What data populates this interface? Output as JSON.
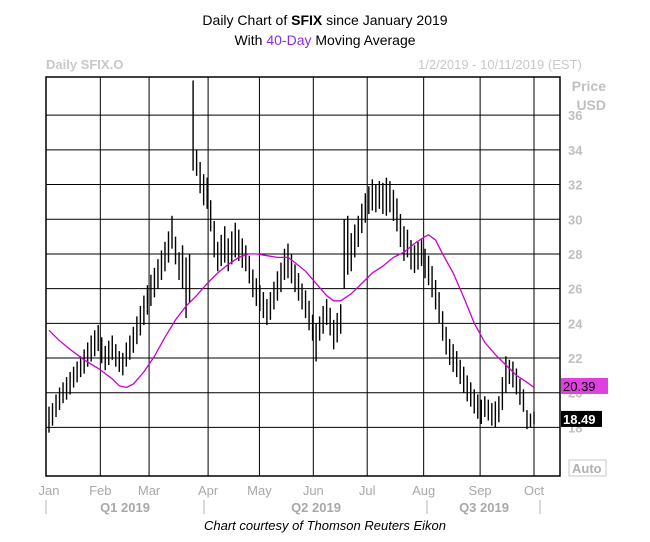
{
  "header": {
    "title_prefix": "Daily Chart of ",
    "ticker": "SFIX",
    "title_suffix": " since January 2019",
    "subtitle_prefix": "With ",
    "ma_label": "40-Day",
    "subtitle_suffix": " Moving Average",
    "series_label": "Daily SFIX.O",
    "date_range": "1/2/2019 - 10/11/2019 (EST)",
    "y_title_1": "Price",
    "y_title_2": "USD",
    "auto_label": "Auto"
  },
  "footer": {
    "credit": "Chart courtesy of Thomson Reuters Eikon"
  },
  "colors": {
    "ma_line": "#cc00cc",
    "bars": "#000000",
    "grid": "#000000",
    "last_price_box": "#000000"
  },
  "chart_data": {
    "type": "line",
    "title": "Daily Chart of SFIX since January 2019",
    "subtitle": "With 40-Day Moving Average",
    "xlabel": "",
    "ylabel": "Price USD",
    "ylim": [
      15.2,
      38.2
    ],
    "y_ticks": [
      18,
      20,
      22,
      24,
      26,
      28,
      30,
      32,
      34,
      36
    ],
    "x_month_labels": [
      "Jan",
      "Feb",
      "Mar",
      "Apr",
      "May",
      "Jun",
      "Jul",
      "Aug",
      "Sep",
      "Oct"
    ],
    "x_quarter_labels": [
      "Q1 2019",
      "Q2 2019",
      "Q3 2019"
    ],
    "grid": true,
    "last_values": {
      "ma": "20.39",
      "price": "18.49"
    },
    "series": [
      {
        "name": "SFIX.O daily",
        "kind": "ohlc-range",
        "points": [
          [
            0,
            17.7,
            19.2
          ],
          [
            1,
            18.1,
            19.4
          ],
          [
            2,
            18.6,
            19.9
          ],
          [
            3,
            19.0,
            20.3
          ],
          [
            4,
            19.4,
            20.6
          ],
          [
            5,
            19.6,
            20.9
          ],
          [
            6,
            19.9,
            21.2
          ],
          [
            7,
            20.3,
            21.5
          ],
          [
            8,
            20.6,
            21.8
          ],
          [
            9,
            20.9,
            22.1
          ],
          [
            10,
            21.1,
            22.5
          ],
          [
            11,
            21.5,
            22.9
          ],
          [
            12,
            21.8,
            23.3
          ],
          [
            13,
            22.1,
            23.6
          ],
          [
            14,
            22.4,
            23.9
          ],
          [
            15,
            21.7,
            23.2
          ],
          [
            16,
            21.3,
            22.7
          ],
          [
            17,
            21.6,
            23.0
          ],
          [
            18,
            21.9,
            23.3
          ],
          [
            19,
            21.5,
            22.8
          ],
          [
            20,
            21.2,
            22.4
          ],
          [
            21,
            21.0,
            22.3
          ],
          [
            22,
            21.5,
            22.9
          ],
          [
            23,
            21.9,
            23.3
          ],
          [
            24,
            22.3,
            23.8
          ],
          [
            25,
            22.8,
            24.4
          ],
          [
            26,
            23.3,
            25.0
          ],
          [
            27,
            23.9,
            25.6
          ],
          [
            28,
            24.5,
            26.2
          ],
          [
            29,
            25.0,
            26.8
          ],
          [
            30,
            25.5,
            27.2
          ],
          [
            31,
            26.0,
            27.7
          ],
          [
            32,
            26.5,
            28.2
          ],
          [
            33,
            27.0,
            28.7
          ],
          [
            34,
            27.5,
            29.3
          ],
          [
            35,
            28.3,
            30.2
          ],
          [
            36,
            27.4,
            29.0
          ],
          [
            37,
            26.5,
            28.1
          ],
          [
            38,
            26.0,
            28.5
          ],
          [
            39,
            24.3,
            27.8
          ],
          [
            40,
            25.2,
            28.0
          ],
          [
            41,
            32.8,
            38.0
          ],
          [
            42,
            32.5,
            34.0
          ],
          [
            43,
            31.5,
            33.3
          ],
          [
            44,
            30.8,
            32.6
          ],
          [
            45,
            30.6,
            32.4
          ],
          [
            46,
            29.3,
            31.1
          ],
          [
            47,
            27.8,
            29.9
          ],
          [
            48,
            27.0,
            28.7
          ],
          [
            49,
            27.3,
            29.1
          ],
          [
            50,
            27.5,
            29.6
          ],
          [
            51,
            27.0,
            28.9
          ],
          [
            52,
            27.4,
            29.3
          ],
          [
            53,
            27.8,
            29.8
          ],
          [
            54,
            27.6,
            29.4
          ],
          [
            55,
            27.2,
            28.9
          ],
          [
            56,
            27.0,
            28.5
          ],
          [
            57,
            26.3,
            27.9
          ],
          [
            58,
            25.5,
            27.1
          ],
          [
            59,
            25.0,
            26.6
          ],
          [
            60,
            24.7,
            26.2
          ],
          [
            61,
            24.3,
            25.8
          ],
          [
            62,
            23.9,
            25.4
          ],
          [
            63,
            24.2,
            25.8
          ],
          [
            64,
            24.8,
            26.4
          ],
          [
            65,
            25.3,
            27.0
          ],
          [
            66,
            25.8,
            27.5
          ],
          [
            67,
            26.5,
            28.3
          ],
          [
            68,
            26.6,
            28.6
          ],
          [
            69,
            26.3,
            28.0
          ],
          [
            70,
            25.8,
            27.4
          ],
          [
            71,
            25.3,
            26.9
          ],
          [
            72,
            24.8,
            26.3
          ],
          [
            73,
            24.3,
            25.9
          ],
          [
            74,
            23.6,
            25.3
          ],
          [
            75,
            23.0,
            24.5
          ],
          [
            76,
            21.8,
            24.0
          ],
          [
            77,
            23.0,
            24.4
          ],
          [
            78,
            23.4,
            25.0
          ],
          [
            79,
            23.9,
            25.4
          ],
          [
            80,
            23.3,
            24.9
          ],
          [
            81,
            22.5,
            24.2
          ],
          [
            82,
            22.9,
            24.6
          ],
          [
            83,
            23.4,
            25.1
          ],
          [
            84,
            26.0,
            30.0
          ],
          [
            85,
            26.8,
            30.2
          ],
          [
            86,
            27.0,
            29.2
          ],
          [
            87,
            27.8,
            29.7
          ],
          [
            88,
            28.4,
            30.2
          ],
          [
            89,
            29.2,
            30.9
          ],
          [
            90,
            29.8,
            31.5
          ],
          [
            91,
            30.3,
            31.9
          ],
          [
            92,
            30.5,
            32.3
          ],
          [
            93,
            30.4,
            32.0
          ],
          [
            94,
            30.6,
            32.2
          ],
          [
            95,
            30.3,
            32.1
          ],
          [
            96,
            30.2,
            32.4
          ],
          [
            97,
            30.4,
            32.2
          ],
          [
            98,
            29.9,
            31.7
          ],
          [
            99,
            29.3,
            31.2
          ],
          [
            100,
            28.4,
            30.3
          ],
          [
            101,
            27.6,
            29.6
          ],
          [
            102,
            27.8,
            29.4
          ],
          [
            103,
            27.1,
            28.8
          ],
          [
            104,
            26.9,
            28.5
          ],
          [
            105,
            27.1,
            28.7
          ],
          [
            106,
            27.3,
            28.9
          ],
          [
            107,
            26.6,
            28.3
          ],
          [
            108,
            26.2,
            27.9
          ],
          [
            109,
            25.5,
            27.3
          ],
          [
            110,
            24.8,
            26.5
          ],
          [
            111,
            24.0,
            25.8
          ],
          [
            112,
            23.0,
            24.7
          ],
          [
            113,
            22.2,
            23.8
          ],
          [
            114,
            21.6,
            23.1
          ],
          [
            115,
            21.2,
            22.8
          ],
          [
            116,
            20.9,
            22.4
          ],
          [
            117,
            20.5,
            21.9
          ],
          [
            118,
            20.0,
            21.5
          ],
          [
            119,
            19.5,
            21.0
          ],
          [
            120,
            19.2,
            20.6
          ],
          [
            121,
            18.8,
            20.2
          ],
          [
            122,
            18.5,
            19.9
          ],
          [
            123,
            18.2,
            19.6
          ],
          [
            124,
            18.6,
            19.8
          ],
          [
            125,
            18.4,
            19.6
          ],
          [
            126,
            18.1,
            19.4
          ],
          [
            127,
            18.0,
            19.5
          ],
          [
            128,
            18.3,
            19.8
          ],
          [
            129,
            19.0,
            20.9
          ],
          [
            130,
            20.0,
            22.1
          ],
          [
            131,
            20.5,
            21.9
          ],
          [
            132,
            20.3,
            21.8
          ],
          [
            133,
            19.9,
            21.4
          ],
          [
            134,
            19.3,
            20.8
          ],
          [
            135,
            18.9,
            20.2
          ],
          [
            136,
            17.9,
            19.0
          ],
          [
            137,
            18.0,
            18.8
          ],
          [
            138,
            18.2,
            18.9
          ]
        ]
      },
      {
        "name": "40-Day MA",
        "kind": "line",
        "points": [
          [
            0,
            23.6
          ],
          [
            3,
            23.0
          ],
          [
            6,
            22.5
          ],
          [
            10,
            21.9
          ],
          [
            14,
            21.4
          ],
          [
            18,
            20.8
          ],
          [
            20,
            20.4
          ],
          [
            22,
            20.3
          ],
          [
            24,
            20.5
          ],
          [
            27,
            21.2
          ],
          [
            30,
            22.1
          ],
          [
            33,
            23.2
          ],
          [
            36,
            24.2
          ],
          [
            39,
            25.0
          ],
          [
            42,
            25.6
          ],
          [
            45,
            26.3
          ],
          [
            48,
            26.9
          ],
          [
            51,
            27.4
          ],
          [
            54,
            27.8
          ],
          [
            57,
            28.0
          ],
          [
            59,
            28.0
          ],
          [
            62,
            27.9
          ],
          [
            65,
            27.8
          ],
          [
            68,
            27.8
          ],
          [
            70,
            27.5
          ],
          [
            73,
            27.0
          ],
          [
            76,
            26.3
          ],
          [
            79,
            25.6
          ],
          [
            81,
            25.3
          ],
          [
            83,
            25.3
          ],
          [
            86,
            25.7
          ],
          [
            89,
            26.3
          ],
          [
            92,
            26.9
          ],
          [
            95,
            27.3
          ],
          [
            98,
            27.8
          ],
          [
            101,
            28.1
          ],
          [
            104,
            28.6
          ],
          [
            107,
            29.0
          ],
          [
            108,
            29.1
          ],
          [
            110,
            28.8
          ],
          [
            112,
            28.0
          ],
          [
            115,
            26.9
          ],
          [
            118,
            25.5
          ],
          [
            121,
            24.0
          ],
          [
            124,
            22.9
          ],
          [
            127,
            22.2
          ],
          [
            130,
            21.6
          ],
          [
            133,
            21.0
          ],
          [
            136,
            20.6
          ],
          [
            138,
            20.3
          ]
        ]
      }
    ]
  }
}
